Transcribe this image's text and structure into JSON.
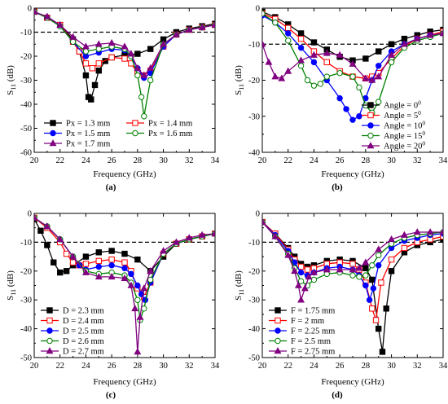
{
  "figure": {
    "reference_line_db": -10,
    "panels": [
      {
        "sub_label": "(a)",
        "xlabel": "Frequency (GHz)",
        "ylabel_main": "S",
        "ylabel_sub": "11",
        "ylabel_unit": " (dB)",
        "legend_columns": 2
      },
      {
        "sub_label": "(b)",
        "xlabel": "Frequency (GHz)",
        "ylabel_main": "S",
        "ylabel_sub": "11",
        "ylabel_unit": " (dB)",
        "legend_columns": 1
      },
      {
        "sub_label": "(c)",
        "xlabel": "Frequency (GHz)",
        "ylabel_main": "S",
        "ylabel_sub": "11",
        "ylabel_unit": " (dB)",
        "legend_columns": 1
      },
      {
        "sub_label": "(d)",
        "xlabel": "Frequency (GHz)",
        "ylabel_main": "S",
        "ylabel_sub": "11",
        "ylabel_unit": " (dB)",
        "legend_columns": 1
      }
    ]
  },
  "chart_data": [
    {
      "type": "line",
      "xlim": [
        20,
        34
      ],
      "ylim": [
        -60,
        0
      ],
      "xticks": [
        20,
        22,
        24,
        26,
        28,
        30,
        32,
        34
      ],
      "yticks": [
        0,
        -10,
        -20,
        -30,
        -40,
        -50,
        -60
      ],
      "legend_position": "bottom-left",
      "series": [
        {
          "name": "Px = 1.3 mm",
          "color": "#000000",
          "marker": "square",
          "filled": true,
          "x": [
            20,
            21,
            22,
            23,
            23.5,
            24,
            24.2,
            24.4,
            24.7,
            25,
            25.5,
            26,
            27,
            28,
            29,
            30,
            31,
            32,
            33,
            34
          ],
          "y": [
            -1.5,
            -4,
            -7,
            -13,
            -18,
            -28,
            -37,
            -38,
            -32,
            -26,
            -22,
            -20.5,
            -19.5,
            -19,
            -17,
            -13,
            -10,
            -8.5,
            -7.5,
            -6.5
          ]
        },
        {
          "name": "Px = 1.4 mm",
          "color": "#ff0000",
          "marker": "square",
          "filled": false,
          "x": [
            20,
            21,
            22,
            23,
            23.5,
            24,
            24.5,
            25,
            26,
            27,
            27.5,
            28,
            28.5,
            29,
            30,
            31,
            32,
            33,
            34
          ],
          "y": [
            -1.5,
            -4,
            -7,
            -14,
            -18,
            -23,
            -25,
            -23,
            -20.5,
            -21,
            -23,
            -27,
            -28,
            -26,
            -16,
            -11,
            -9,
            -8,
            -7
          ]
        },
        {
          "name": "Px = 1.5 mm",
          "color": "#0000ff",
          "marker": "circle",
          "filled": true,
          "x": [
            20,
            21,
            22,
            23,
            24,
            25,
            26,
            27,
            27.5,
            28,
            28.5,
            29,
            30,
            31,
            32,
            33,
            34
          ],
          "y": [
            -1.5,
            -4,
            -7.5,
            -14,
            -20,
            -18.5,
            -17,
            -17.5,
            -20,
            -25,
            -29,
            -27,
            -16,
            -11,
            -9,
            -8,
            -7
          ]
        },
        {
          "name": "Px = 1.6 mm",
          "color": "#008000",
          "marker": "circle",
          "filled": false,
          "x": [
            20,
            21,
            22,
            23,
            24,
            25,
            26,
            27,
            27.5,
            28,
            28.3,
            28.5,
            29,
            30,
            31,
            32,
            33,
            34
          ],
          "y": [
            -1.5,
            -4,
            -7.5,
            -14,
            -18,
            -17,
            -16,
            -17,
            -20,
            -28,
            -37,
            -45,
            -30,
            -15,
            -11,
            -9,
            -8,
            -7
          ]
        },
        {
          "name": "Px = 1.7 mm",
          "color": "#800080",
          "marker": "triangle",
          "filled": true,
          "x": [
            20,
            21,
            22,
            23,
            24,
            25,
            26,
            27,
            27.5,
            28,
            28.5,
            29,
            30,
            31,
            32,
            33,
            34
          ],
          "y": [
            -1.5,
            -3.5,
            -7,
            -12,
            -16,
            -15,
            -14.5,
            -16,
            -19,
            -25,
            -28,
            -25,
            -15,
            -11,
            -9,
            -8,
            -7
          ]
        }
      ]
    },
    {
      "type": "line",
      "xlim": [
        20,
        34
      ],
      "ylim": [
        -40,
        0
      ],
      "xticks": [
        20,
        22,
        24,
        26,
        28,
        30,
        32,
        34
      ],
      "yticks": [
        0,
        -10,
        -20,
        -30,
        -40
      ],
      "legend_position": "bottom-right",
      "series": [
        {
          "name": "Angle = 0",
          "name_sup": "0",
          "color": "#000000",
          "marker": "square",
          "filled": true,
          "x": [
            20,
            21,
            22,
            23,
            24,
            25,
            26,
            27,
            28,
            29,
            30,
            31,
            32,
            33,
            34
          ],
          "y": [
            -1,
            -2.5,
            -4.5,
            -7,
            -9.5,
            -11.5,
            -13.5,
            -14.5,
            -14,
            -12,
            -10,
            -8.5,
            -7.5,
            -6.5,
            -6
          ]
        },
        {
          "name": "Angle = 5",
          "name_sup": "0",
          "color": "#ff0000",
          "marker": "square",
          "filled": false,
          "x": [
            20,
            21,
            22,
            23,
            24,
            25,
            26,
            27,
            28,
            28.5,
            29,
            30,
            31,
            32,
            33,
            34
          ],
          "y": [
            -1.5,
            -3,
            -5.5,
            -8.5,
            -12,
            -15,
            -17.5,
            -19,
            -19.5,
            -19,
            -18,
            -14,
            -10.5,
            -8.5,
            -7.5,
            -6.5
          ]
        },
        {
          "name": "Angle = 10",
          "name_sup": "0",
          "color": "#0000ff",
          "marker": "circle",
          "filled": true,
          "x": [
            20,
            21,
            22,
            23,
            24,
            25,
            26,
            26.5,
            27,
            27.5,
            28,
            28.5,
            29,
            30,
            31,
            32,
            33,
            34
          ],
          "y": [
            -2,
            -4,
            -7,
            -11,
            -15,
            -20,
            -25,
            -28,
            -31,
            -30,
            -25,
            -20,
            -16,
            -12,
            -10,
            -8.5,
            -7.5,
            -7
          ]
        },
        {
          "name": "Angle = 15",
          "name_sup": "0",
          "color": "#008000",
          "marker": "circle",
          "filled": false,
          "x": [
            20,
            21,
            22,
            23,
            23.5,
            24,
            24.5,
            25,
            26,
            27,
            27.5,
            28,
            28.5,
            29,
            30,
            31,
            32,
            33,
            34
          ],
          "y": [
            -1.5,
            -4,
            -9,
            -16,
            -20,
            -21.5,
            -21,
            -19,
            -18,
            -19,
            -22,
            -27,
            -29,
            -26,
            -15,
            -11,
            -9,
            -8,
            -7
          ]
        },
        {
          "name": "Angle = 20",
          "name_sup": "0",
          "color": "#800080",
          "marker": "triangle",
          "filled": true,
          "x": [
            20,
            20.5,
            21,
            21.5,
            22,
            23,
            24,
            25,
            26,
            27,
            28,
            28.5,
            29,
            30,
            31,
            32,
            33,
            34
          ],
          "y": [
            -10,
            -15,
            -19,
            -19.5,
            -17.5,
            -14.5,
            -13,
            -12.5,
            -13,
            -15.5,
            -19.5,
            -20,
            -19,
            -13,
            -10,
            -8.5,
            -7.5,
            -7
          ]
        }
      ]
    },
    {
      "type": "line",
      "xlim": [
        20,
        34
      ],
      "ylim": [
        -50,
        0
      ],
      "xticks": [
        20,
        22,
        24,
        26,
        28,
        30,
        32,
        34
      ],
      "yticks": [
        0,
        -10,
        -20,
        -30,
        -40,
        -50
      ],
      "legend_position": "bottom-left",
      "series": [
        {
          "name": "D = 2.3 mm",
          "color": "#000000",
          "marker": "square",
          "filled": true,
          "x": [
            20,
            20.5,
            21,
            21.5,
            22,
            22.5,
            23,
            24,
            25,
            26,
            27,
            28,
            29,
            30,
            31,
            32,
            33,
            34
          ],
          "y": [
            -2,
            -6,
            -11,
            -17,
            -20.5,
            -20,
            -18,
            -15,
            -13.5,
            -13,
            -14,
            -16,
            -20,
            -15,
            -10.5,
            -9,
            -8,
            -7
          ]
        },
        {
          "name": "D = 2.4 mm",
          "color": "#ff0000",
          "marker": "square",
          "filled": false,
          "x": [
            20,
            21,
            22,
            22.5,
            23,
            23.5,
            24,
            25,
            26,
            27,
            27.5,
            28,
            28.5,
            29,
            30,
            31,
            32,
            33,
            34
          ],
          "y": [
            -1.5,
            -5,
            -10,
            -14,
            -17,
            -18,
            -17.5,
            -16.5,
            -16,
            -17,
            -20,
            -26,
            -29,
            -24,
            -14,
            -10.5,
            -9,
            -8,
            -7
          ]
        },
        {
          "name": "D = 2.5 mm",
          "color": "#0000ff",
          "marker": "circle",
          "filled": true,
          "x": [
            20,
            21,
            22,
            23,
            23.5,
            24,
            25,
            26,
            27,
            27.5,
            28,
            28.3,
            28.6,
            29,
            30,
            31,
            32,
            33,
            34
          ],
          "y": [
            -1.5,
            -4.5,
            -9,
            -15,
            -18,
            -19.5,
            -18.5,
            -18,
            -19,
            -21,
            -25,
            -28,
            -30,
            -24,
            -14,
            -10.5,
            -9,
            -8,
            -7
          ]
        },
        {
          "name": "D = 2.6 mm",
          "color": "#008000",
          "marker": "circle",
          "filled": false,
          "x": [
            20,
            21,
            22,
            23,
            24,
            25,
            26,
            27,
            27.5,
            28,
            28.2,
            28.5,
            29,
            30,
            31,
            32,
            33,
            34
          ],
          "y": [
            -1.5,
            -4.5,
            -9,
            -15,
            -20,
            -21,
            -20.5,
            -21.5,
            -24,
            -30,
            -37,
            -33,
            -23,
            -14,
            -10.5,
            -9,
            -8,
            -7
          ]
        },
        {
          "name": "D = 2.7 mm",
          "color": "#800080",
          "marker": "triangle",
          "filled": true,
          "x": [
            20,
            21,
            22,
            23,
            24,
            25,
            26,
            27,
            27.5,
            27.8,
            28,
            28.2,
            28.5,
            29,
            30,
            31,
            32,
            33,
            34
          ],
          "y": [
            -1.5,
            -4.5,
            -9,
            -15,
            -20.5,
            -22,
            -22,
            -22.5,
            -25,
            -33,
            -48,
            -36,
            -26,
            -20,
            -13,
            -10,
            -8.5,
            -7.5,
            -7
          ]
        }
      ]
    },
    {
      "type": "line",
      "xlim": [
        20,
        34
      ],
      "ylim": [
        -50,
        0
      ],
      "xticks": [
        20,
        22,
        24,
        26,
        28,
        30,
        32,
        34
      ],
      "yticks": [
        0,
        -10,
        -20,
        -30,
        -40,
        -50
      ],
      "legend_position": "bottom-left",
      "series": [
        {
          "name": "F = 1.75 mm",
          "color": "#000000",
          "marker": "square",
          "filled": true,
          "x": [
            20,
            21,
            22,
            22.5,
            23,
            23.5,
            24,
            25,
            26,
            27,
            28,
            28.5,
            29,
            29.3,
            29.6,
            30,
            31,
            32,
            33,
            34
          ],
          "y": [
            -3,
            -7,
            -12,
            -15,
            -17.5,
            -18.5,
            -18,
            -16.5,
            -16,
            -16.5,
            -19,
            -23,
            -40,
            -48,
            -33,
            -20,
            -13.5,
            -11,
            -10,
            -9
          ]
        },
        {
          "name": "F = 2 mm",
          "color": "#ff0000",
          "marker": "square",
          "filled": false,
          "x": [
            20,
            21,
            22,
            22.5,
            23,
            23.5,
            24,
            25,
            26,
            27,
            27.5,
            28,
            28.5,
            28.8,
            29.2,
            30,
            31,
            32,
            33,
            34
          ],
          "y": [
            -3,
            -7,
            -12.5,
            -16,
            -18.5,
            -19.5,
            -19,
            -17.5,
            -17,
            -17.5,
            -19.5,
            -24,
            -33,
            -37,
            -24,
            -16,
            -12,
            -10,
            -9,
            -8
          ]
        },
        {
          "name": "F = 2.25 mm",
          "color": "#0000ff",
          "marker": "circle",
          "filled": true,
          "x": [
            20,
            21,
            22,
            22.5,
            23,
            23.5,
            24,
            25,
            26,
            27,
            27.5,
            28,
            28.3,
            28.6,
            29,
            30,
            31,
            32,
            33,
            34
          ],
          "y": [
            -3,
            -7.5,
            -13,
            -17,
            -20.5,
            -21.5,
            -20.5,
            -19,
            -18.5,
            -19.5,
            -21.5,
            -25,
            -30,
            -26,
            -18,
            -12,
            -9.5,
            -8.5,
            -7.5,
            -7
          ]
        },
        {
          "name": "F = 2.5 mm",
          "color": "#008000",
          "marker": "circle",
          "filled": false,
          "x": [
            20,
            21,
            22,
            22.5,
            23,
            23.5,
            24,
            25,
            26,
            27,
            27.5,
            28,
            28.5,
            29,
            30,
            31,
            32,
            33,
            34
          ],
          "y": [
            -3,
            -8,
            -14,
            -19,
            -23.5,
            -25,
            -23,
            -21,
            -20.5,
            -21.5,
            -22,
            -21.5,
            -18,
            -14.5,
            -10.5,
            -8.5,
            -7.5,
            -7,
            -6.5
          ]
        },
        {
          "name": "F = 2.75 mm",
          "color": "#800080",
          "marker": "triangle",
          "filled": true,
          "x": [
            20,
            21,
            22,
            22.5,
            22.8,
            23,
            23.3,
            23.6,
            24,
            25,
            26,
            27,
            27.5,
            28,
            29,
            30,
            31,
            32,
            33,
            34
          ],
          "y": [
            -3,
            -8,
            -14.5,
            -20,
            -25,
            -30,
            -26,
            -22,
            -20.5,
            -19.5,
            -19.5,
            -19.5,
            -19,
            -17,
            -12.5,
            -9,
            -7.5,
            -6.5,
            -6.5,
            -6.5
          ]
        }
      ]
    }
  ]
}
